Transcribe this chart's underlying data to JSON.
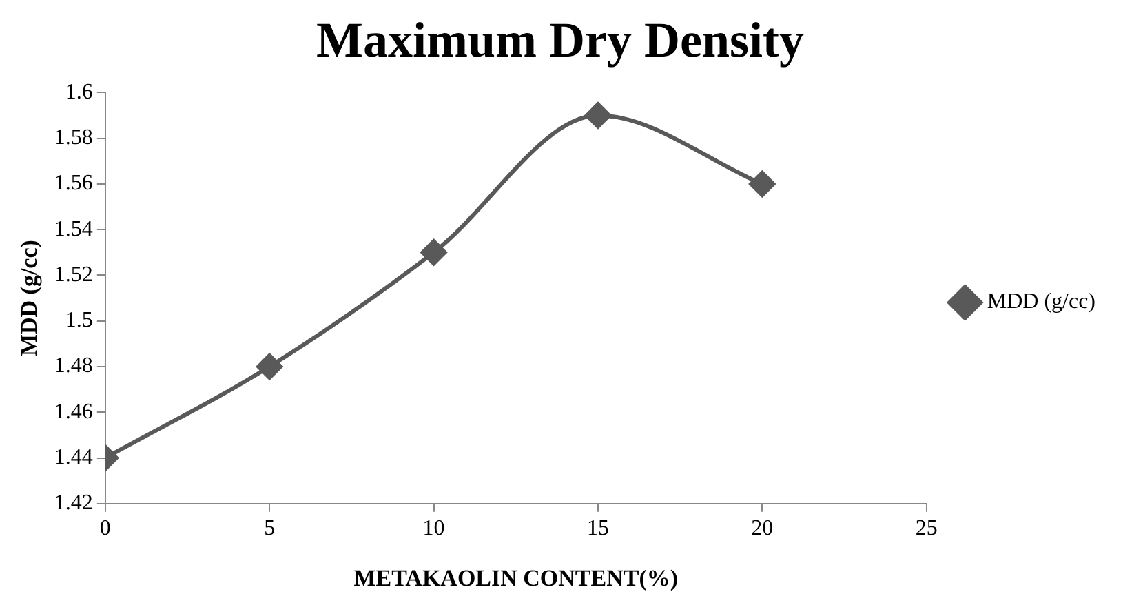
{
  "chart_data": {
    "type": "line",
    "title": "Maximum Dry Density",
    "xlabel": "METAKAOLIN CONTENT(%)",
    "ylabel": "MDD (g/cc)",
    "x": [
      0,
      5,
      10,
      15,
      20
    ],
    "series": [
      {
        "name": "MDD (g/cc)",
        "color": "#595959",
        "values": [
          1.44,
          1.48,
          1.53,
          1.59,
          1.56
        ]
      }
    ],
    "xlim": [
      0,
      25
    ],
    "xticks": [
      0,
      5,
      10,
      15,
      20,
      25
    ],
    "ylim": [
      1.42,
      1.6
    ],
    "yticks": [
      1.42,
      1.44,
      1.46,
      1.48,
      1.5,
      1.52,
      1.54,
      1.56,
      1.58,
      1.6
    ],
    "grid": false,
    "legend": "right",
    "marker": "diamond",
    "line_style": "solid"
  }
}
